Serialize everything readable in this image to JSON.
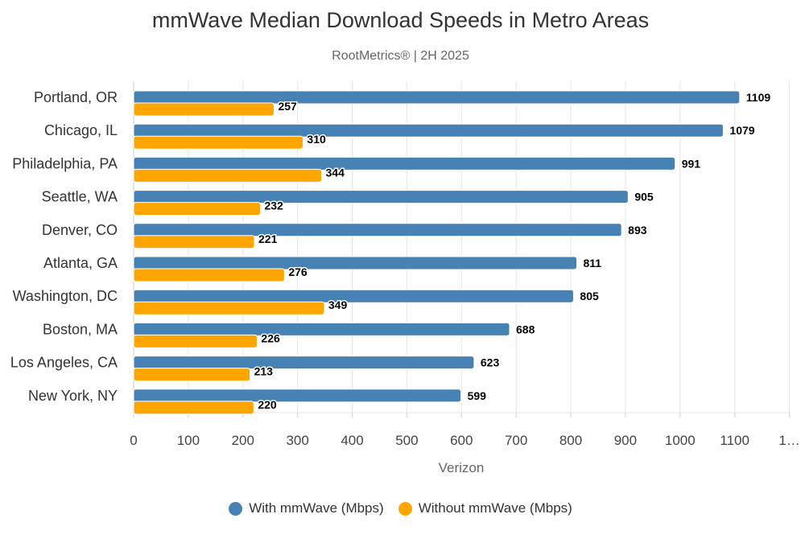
{
  "chart_data": {
    "type": "bar",
    "orientation": "horizontal",
    "title": "mmWave Median Download Speeds in Metro Areas",
    "subtitle": "RootMetrics® | 2H 2025",
    "xlabel": "Verizon",
    "ylabel": "",
    "xlim": [
      0,
      1200
    ],
    "tick_labels": [
      "0",
      "100",
      "200",
      "300",
      "400",
      "500",
      "600",
      "700",
      "800",
      "900",
      "1000",
      "1100",
      "1…"
    ],
    "grid": true,
    "legend_position": "bottom-center",
    "categories": [
      "Portland, OR",
      "Chicago, IL",
      "Philadelphia, PA",
      "Seattle, WA",
      "Denver, CO",
      "Atlanta, GA",
      "Washington, DC",
      "Boston, MA",
      "Los Angeles, CA",
      "New York, NY"
    ],
    "series": [
      {
        "name": "With mmWave (Mbps)",
        "color": "#4682B4",
        "values": [
          1109,
          1079,
          991,
          905,
          893,
          811,
          805,
          688,
          623,
          599
        ]
      },
      {
        "name": "Without mmWave (Mbps)",
        "color": "#FFA500",
        "values": [
          257,
          310,
          344,
          232,
          221,
          276,
          349,
          226,
          213,
          220
        ]
      }
    ]
  }
}
